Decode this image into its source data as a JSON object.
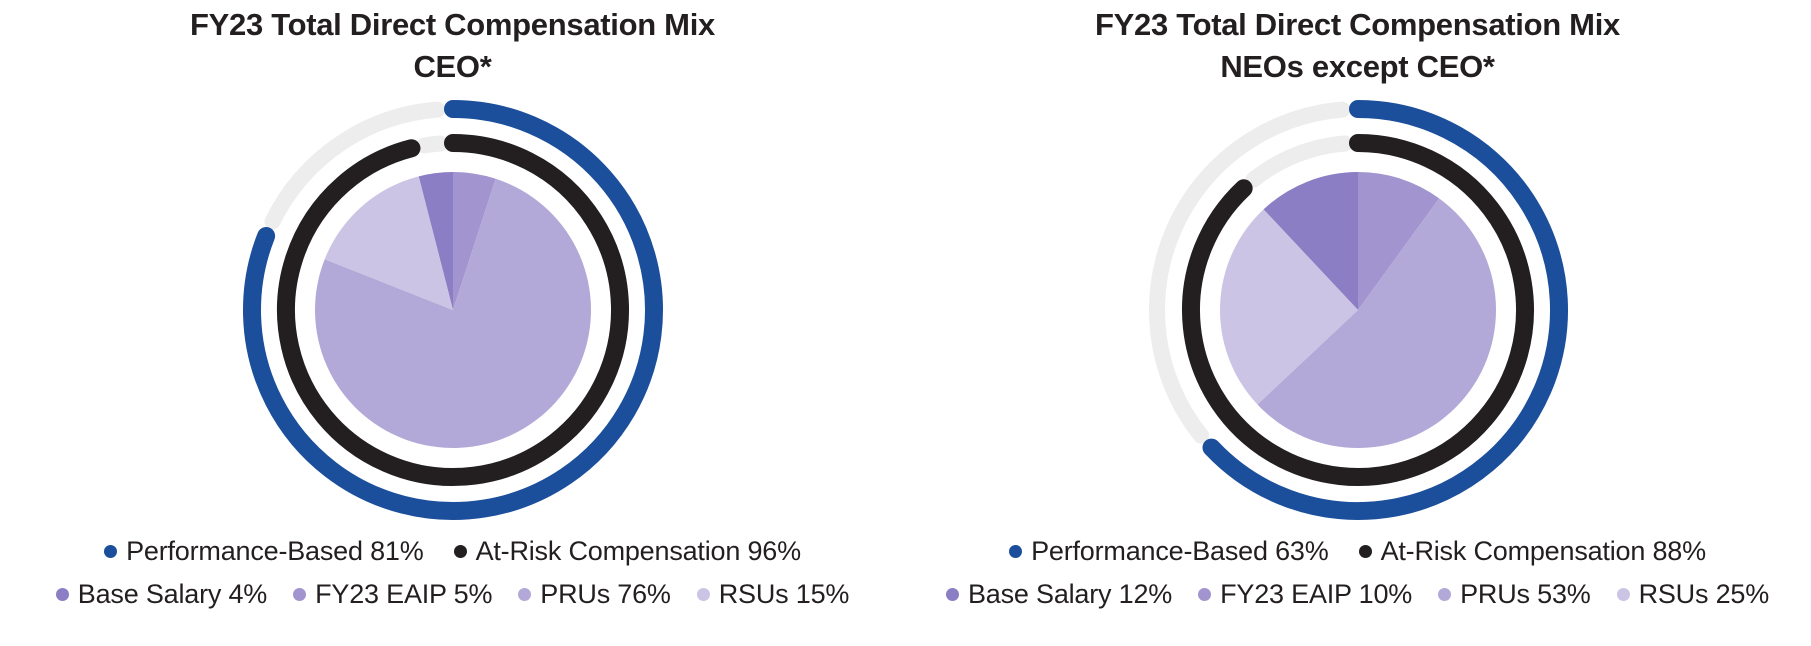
{
  "style": {
    "background": "#ffffff",
    "text_color": "#231f20",
    "track_color": "#ededed",
    "blue": "#1b4e9b",
    "ring_black": "#231f20"
  },
  "chart_data": [
    {
      "type": "pie",
      "title": [
        "FY23 Total Direct Compensation Mix",
        "CEO*"
      ],
      "layout": {
        "rings_start": "12-oclock-clockwise",
        "pie_rotation": "base-salary-ends-at-12",
        "legend_position": "bottom"
      },
      "rings": [
        {
          "name": "Performance-Based",
          "value_pct": 81,
          "label": "Performance-Based 81%",
          "color": "#1b4e9b"
        },
        {
          "name": "At-Risk Compensation",
          "value_pct": 96,
          "label": "At-Risk Compensation 96%",
          "color": "#231f20"
        }
      ],
      "slices": [
        {
          "name": "Base Salary",
          "value_pct": 4,
          "label": "Base Salary 4%",
          "color": "#8c7ec4"
        },
        {
          "name": "FY23 EAIP",
          "value_pct": 5,
          "label": "FY23 EAIP 5%",
          "color": "#a294cf"
        },
        {
          "name": "PRUs",
          "value_pct": 76,
          "label": "PRUs 76%",
          "color": "#b3a9d8"
        },
        {
          "name": "RSUs",
          "value_pct": 15,
          "label": "RSUs 15%",
          "color": "#cbc4e4"
        }
      ]
    },
    {
      "type": "pie",
      "title": [
        "FY23 Total Direct Compensation Mix",
        "NEOs except CEO*"
      ],
      "layout": {
        "rings_start": "12-oclock-clockwise",
        "pie_rotation": "base-salary-ends-at-12",
        "legend_position": "bottom"
      },
      "rings": [
        {
          "name": "Performance-Based",
          "value_pct": 63,
          "label": "Performance-Based 63%",
          "color": "#1b4e9b"
        },
        {
          "name": "At-Risk Compensation",
          "value_pct": 88,
          "label": "At-Risk Compensation 88%",
          "color": "#231f20"
        }
      ],
      "slices": [
        {
          "name": "Base Salary",
          "value_pct": 12,
          "label": "Base Salary 12%",
          "color": "#8c7ec4"
        },
        {
          "name": "FY23 EAIP",
          "value_pct": 10,
          "label": "FY23 EAIP 10%",
          "color": "#a294cf"
        },
        {
          "name": "PRUs",
          "value_pct": 53,
          "label": "PRUs 53%",
          "color": "#b3a9d8"
        },
        {
          "name": "RSUs",
          "value_pct": 25,
          "label": "RSUs 25%",
          "color": "#cbc4e4"
        }
      ]
    }
  ]
}
